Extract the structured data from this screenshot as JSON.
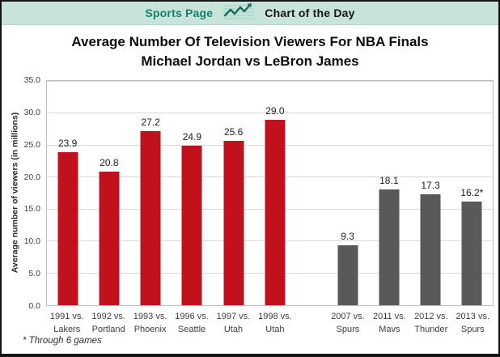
{
  "header": {
    "brand": "Sports Page",
    "feature": "Chart of the Day"
  },
  "colors": {
    "header_bg": "#c8e4da",
    "brand_text": "#17806c",
    "icon_stroke": "#1c6b5c",
    "jordan_bar": "#c0111c",
    "lebron_bar": "#595959",
    "gridline": "#d9d9d9"
  },
  "chart_data": {
    "type": "bar",
    "title": "Average Number Of Television Viewers For NBA Finals",
    "subtitle": "Michael Jordan vs LeBron James",
    "ylabel": "Average number of viewers (in millions)",
    "xlabel": "",
    "ylim": [
      0,
      35
    ],
    "yticks": [
      35,
      30,
      25,
      20,
      15,
      10,
      5,
      0
    ],
    "grid": true,
    "legend": "none",
    "series": [
      {
        "name": "Michael Jordan NBA Finals",
        "color": "#c0111c",
        "points": [
          {
            "category": "1991 vs.\nLakers",
            "value": 23.9,
            "label": "23.9"
          },
          {
            "category": "1992 vs.\nPortland",
            "value": 20.8,
            "label": "20.8"
          },
          {
            "category": "1993 vs.\nPhoenix",
            "value": 27.2,
            "label": "27.2"
          },
          {
            "category": "1996 vs.\nSeattle",
            "value": 24.9,
            "label": "24.9"
          },
          {
            "category": "1997 vs.\nUtah",
            "value": 25.6,
            "label": "25.6"
          },
          {
            "category": "1998 vs.\nUtah",
            "value": 29.0,
            "label": "29.0"
          }
        ]
      },
      {
        "name": "LeBron James NBA Finals",
        "color": "#595959",
        "points": [
          {
            "category": "2007 vs.\nSpurs",
            "value": 9.3,
            "label": "9.3"
          },
          {
            "category": "2011 vs.\nMavs",
            "value": 18.1,
            "label": "18.1"
          },
          {
            "category": "2012 vs.\nThunder",
            "value": 17.3,
            "label": "17.3"
          },
          {
            "category": "2013 vs.\nSpurs",
            "value": 16.2,
            "label": "16.2*"
          }
        ]
      }
    ],
    "footnote": "* Through 6 games"
  }
}
